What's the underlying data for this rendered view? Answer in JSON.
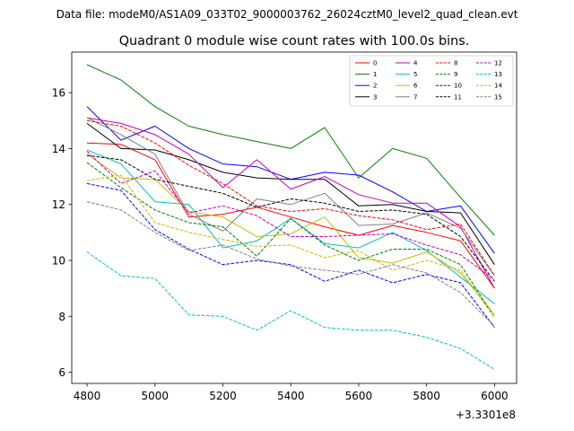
{
  "chart_data": {
    "type": "line",
    "suptitle": "Data file: modeM0/AS1A09_033T02_9000003762_26024cztM0_level2_quad_clean.evt",
    "title": "Quadrant 0 module wise count rates with 100.0s bins.",
    "xlabel": "",
    "ylabel": "",
    "x_offset_label": "+3.3301e8",
    "x": [
      4800,
      4900,
      5000,
      5100,
      5200,
      5300,
      5400,
      5500,
      5600,
      5700,
      5800,
      5900,
      6000
    ],
    "xlim": [
      4755,
      6065
    ],
    "ylim": [
      5.6,
      17.45
    ],
    "xticks": [
      4800,
      5000,
      5200,
      5400,
      5600,
      5800,
      6000
    ],
    "xtick_labels": [
      "4800",
      "5000",
      "5200",
      "5400",
      "5600",
      "5800",
      "6000"
    ],
    "yticks": [
      6,
      8,
      10,
      12,
      14,
      16
    ],
    "ytick_labels": [
      "6",
      "8",
      "10",
      "12",
      "14",
      "16"
    ],
    "legend_position": "top-right",
    "series": [
      {
        "name": "0",
        "color": "#ff0000",
        "dash": "solid",
        "values": [
          14.2,
          14.15,
          13.6,
          11.55,
          11.65,
          11.9,
          11.55,
          11.2,
          10.9,
          11.25,
          11.0,
          10.7,
          9.0
        ]
      },
      {
        "name": "1",
        "color": "#008000",
        "dash": "solid",
        "values": [
          17.0,
          16.45,
          15.5,
          14.8,
          14.5,
          14.25,
          14.0,
          14.75,
          12.95,
          14.0,
          13.65,
          12.25,
          10.9
        ]
      },
      {
        "name": "2",
        "color": "#0000ff",
        "dash": "solid",
        "values": [
          15.5,
          14.3,
          14.8,
          14.0,
          13.45,
          13.35,
          12.9,
          13.15,
          13.05,
          12.45,
          11.75,
          11.95,
          10.25
        ]
      },
      {
        "name": "3",
        "color": "#000000",
        "dash": "solid",
        "values": [
          14.9,
          14.0,
          13.95,
          13.6,
          13.15,
          12.95,
          12.9,
          12.9,
          11.95,
          12.0,
          11.75,
          11.7,
          9.85
        ]
      },
      {
        "name": "4",
        "color": "#bf00bf",
        "dash": "solid",
        "values": [
          15.1,
          14.9,
          14.5,
          13.8,
          12.6,
          13.6,
          12.55,
          13.0,
          12.35,
          12.05,
          12.05,
          11.2,
          9.0
        ]
      },
      {
        "name": "5",
        "color": "#00bfbf",
        "dash": "solid",
        "values": [
          13.95,
          13.45,
          12.1,
          12.0,
          10.45,
          10.7,
          11.5,
          10.6,
          10.45,
          11.0,
          10.35,
          9.4,
          8.45
        ]
      },
      {
        "name": "6",
        "color": "#bfbf00",
        "dash": "solid",
        "values": [
          13.8,
          12.95,
          12.9,
          11.75,
          11.55,
          10.85,
          10.95,
          11.55,
          10.1,
          9.9,
          10.3,
          9.55,
          8.05
        ]
      },
      {
        "name": "7",
        "color": "#808080",
        "dash": "solid",
        "values": [
          15.1,
          14.5,
          13.8,
          11.65,
          11.05,
          12.2,
          12.0,
          12.4,
          11.25,
          11.3,
          11.7,
          11.15,
          9.45
        ]
      },
      {
        "name": "8",
        "color": "#ff0000",
        "dash": "dashed",
        "values": [
          15.0,
          14.8,
          14.2,
          13.4,
          12.75,
          11.95,
          11.75,
          11.85,
          11.6,
          11.45,
          11.1,
          11.3,
          9.45
        ]
      },
      {
        "name": "9",
        "color": "#008000",
        "dash": "dashed",
        "values": [
          13.5,
          12.6,
          11.8,
          11.35,
          11.2,
          10.15,
          11.5,
          10.55,
          10.0,
          10.4,
          10.4,
          9.85,
          7.95
        ]
      },
      {
        "name": "10",
        "color": "#0000ff",
        "dash": "dashed",
        "values": [
          12.75,
          12.5,
          11.1,
          10.4,
          9.85,
          10.0,
          9.85,
          9.25,
          9.65,
          9.2,
          9.5,
          9.2,
          7.6
        ]
      },
      {
        "name": "11",
        "color": "#000000",
        "dash": "dashed",
        "values": [
          13.75,
          13.6,
          12.9,
          12.65,
          12.4,
          11.9,
          12.2,
          12.05,
          11.75,
          11.8,
          11.65,
          10.85,
          9.25
        ]
      },
      {
        "name": "12",
        "color": "#bf00bf",
        "dash": "dashed",
        "values": [
          13.9,
          12.75,
          13.2,
          11.7,
          11.95,
          11.6,
          10.85,
          10.85,
          10.9,
          10.95,
          10.55,
          10.2,
          9.3
        ]
      },
      {
        "name": "13",
        "color": "#00bfbf",
        "dash": "dashed",
        "values": [
          10.3,
          9.45,
          9.35,
          8.05,
          8.0,
          7.5,
          8.2,
          7.6,
          7.5,
          7.5,
          7.25,
          6.85,
          6.1
        ]
      },
      {
        "name": "14",
        "color": "#bfbf00",
        "dash": "dashed",
        "values": [
          12.85,
          13.05,
          11.35,
          11.0,
          10.75,
          10.5,
          10.55,
          10.1,
          10.35,
          9.65,
          10.0,
          9.65,
          7.95
        ]
      },
      {
        "name": "15",
        "color": "#808080",
        "dash": "dashed",
        "values": [
          12.1,
          11.8,
          11.0,
          10.35,
          10.55,
          10.05,
          9.8,
          9.65,
          9.5,
          9.85,
          9.55,
          8.85,
          7.65
        ]
      }
    ]
  }
}
